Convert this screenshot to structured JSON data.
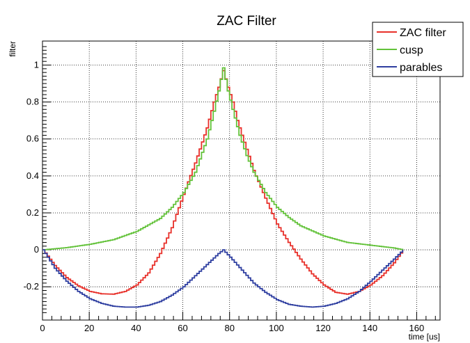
{
  "chart_data": {
    "type": "line",
    "title": "ZAC Filter",
    "xlabel": "time [us]",
    "ylabel": "filter",
    "xlim": [
      0,
      170
    ],
    "ylim": [
      -0.38,
      1.13
    ],
    "x_ticks": [
      0,
      20,
      40,
      60,
      80,
      100,
      120,
      140,
      160
    ],
    "x_tick_labels": [
      "0",
      "20",
      "40",
      "60",
      "80",
      "100",
      "120",
      "140",
      "160"
    ],
    "y_ticks": [
      -0.2,
      0,
      0.2,
      0.4,
      0.6,
      0.8,
      1
    ],
    "y_tick_labels": [
      "-0.2",
      "0",
      "0.2",
      "0.4",
      "0.6",
      "0.8",
      "1"
    ],
    "grid": true,
    "legend_position": "top-right",
    "line_style": "step",
    "series": [
      {
        "name": "ZAC filter",
        "color": "#e8302a",
        "x": [
          0,
          5,
          10,
          15,
          20,
          25,
          30,
          35,
          40,
          45,
          50,
          55,
          60,
          65,
          70,
          73,
          75,
          77,
          79,
          81,
          83,
          85,
          90,
          95,
          100,
          105,
          110,
          115,
          120,
          125,
          130,
          135,
          140,
          145,
          150,
          154
        ],
        "y": [
          0,
          -0.085,
          -0.15,
          -0.195,
          -0.225,
          -0.238,
          -0.24,
          -0.225,
          -0.19,
          -0.125,
          -0.02,
          0.12,
          0.3,
          0.47,
          0.66,
          0.8,
          0.88,
          0.97,
          0.88,
          0.8,
          0.7,
          0.62,
          0.43,
          0.28,
          0.14,
          0.04,
          -0.05,
          -0.13,
          -0.19,
          -0.23,
          -0.24,
          -0.225,
          -0.19,
          -0.14,
          -0.07,
          0
        ]
      },
      {
        "name": "cusp",
        "color": "#63c23a",
        "x": [
          0,
          10,
          20,
          30,
          40,
          50,
          55,
          60,
          65,
          70,
          73,
          75,
          77,
          79,
          81,
          84,
          87,
          90,
          95,
          100,
          105,
          110,
          120,
          130,
          140,
          150,
          154
        ],
        "y": [
          0,
          0.012,
          0.03,
          0.055,
          0.1,
          0.17,
          0.23,
          0.31,
          0.42,
          0.6,
          0.75,
          0.86,
          0.985,
          0.86,
          0.76,
          0.62,
          0.51,
          0.42,
          0.31,
          0.23,
          0.175,
          0.13,
          0.075,
          0.04,
          0.025,
          0.01,
          0
        ]
      },
      {
        "name": "parables",
        "color": "#2e3ea0",
        "x": [
          0,
          5,
          10,
          15,
          20,
          25,
          30,
          35,
          40,
          45,
          50,
          55,
          60,
          65,
          70,
          75,
          77,
          80,
          85,
          90,
          95,
          100,
          105,
          110,
          115,
          120,
          125,
          130,
          135,
          140,
          145,
          150,
          154
        ],
        "y": [
          0,
          -0.1,
          -0.17,
          -0.225,
          -0.265,
          -0.29,
          -0.305,
          -0.31,
          -0.31,
          -0.3,
          -0.28,
          -0.245,
          -0.2,
          -0.14,
          -0.08,
          -0.02,
          0,
          -0.04,
          -0.11,
          -0.18,
          -0.23,
          -0.27,
          -0.295,
          -0.305,
          -0.31,
          -0.305,
          -0.29,
          -0.265,
          -0.225,
          -0.17,
          -0.11,
          -0.05,
          0
        ]
      }
    ]
  }
}
